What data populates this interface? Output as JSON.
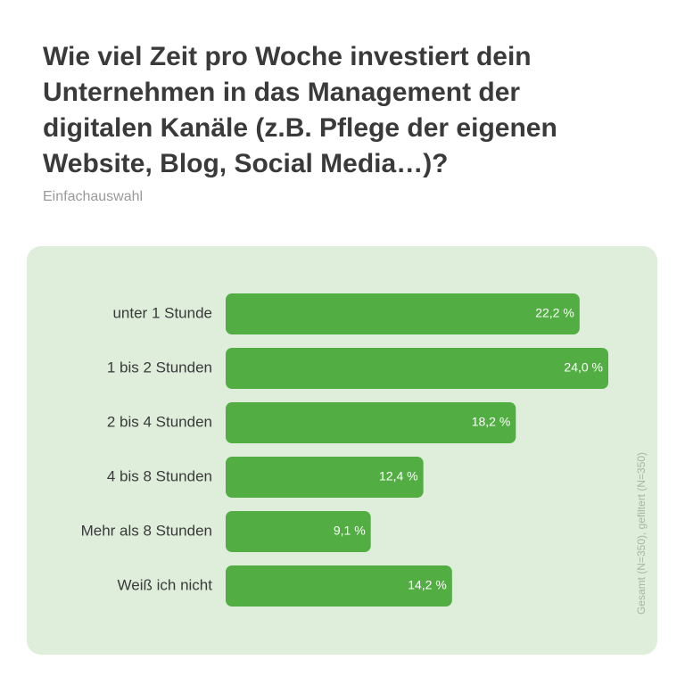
{
  "chart_data": {
    "type": "bar",
    "orientation": "horizontal",
    "title": "Wie viel Zeit pro Woche investiert dein Unternehmen in das Management der digitalen Kanäle (z.B. Pflege der eigenen Website, Blog, Social Media…)?",
    "subtitle": "Einfachauswahl",
    "note": "Gesamt (N=350), gefiltert (N=350)",
    "categories": [
      "unter 1 Stunde",
      "1 bis 2 Stunden",
      "2 bis 4 Stunden",
      "4 bis 8 Stunden",
      "Mehr als 8 Stunden",
      "Weiß ich nicht"
    ],
    "values": [
      22.2,
      24.0,
      18.2,
      12.4,
      9.1,
      14.2
    ],
    "value_labels": [
      "22,2 %",
      "24,0 %",
      "18,2 %",
      "12,4 %",
      "9,1 %",
      "14,2 %"
    ],
    "color": "#52ad43"
  }
}
